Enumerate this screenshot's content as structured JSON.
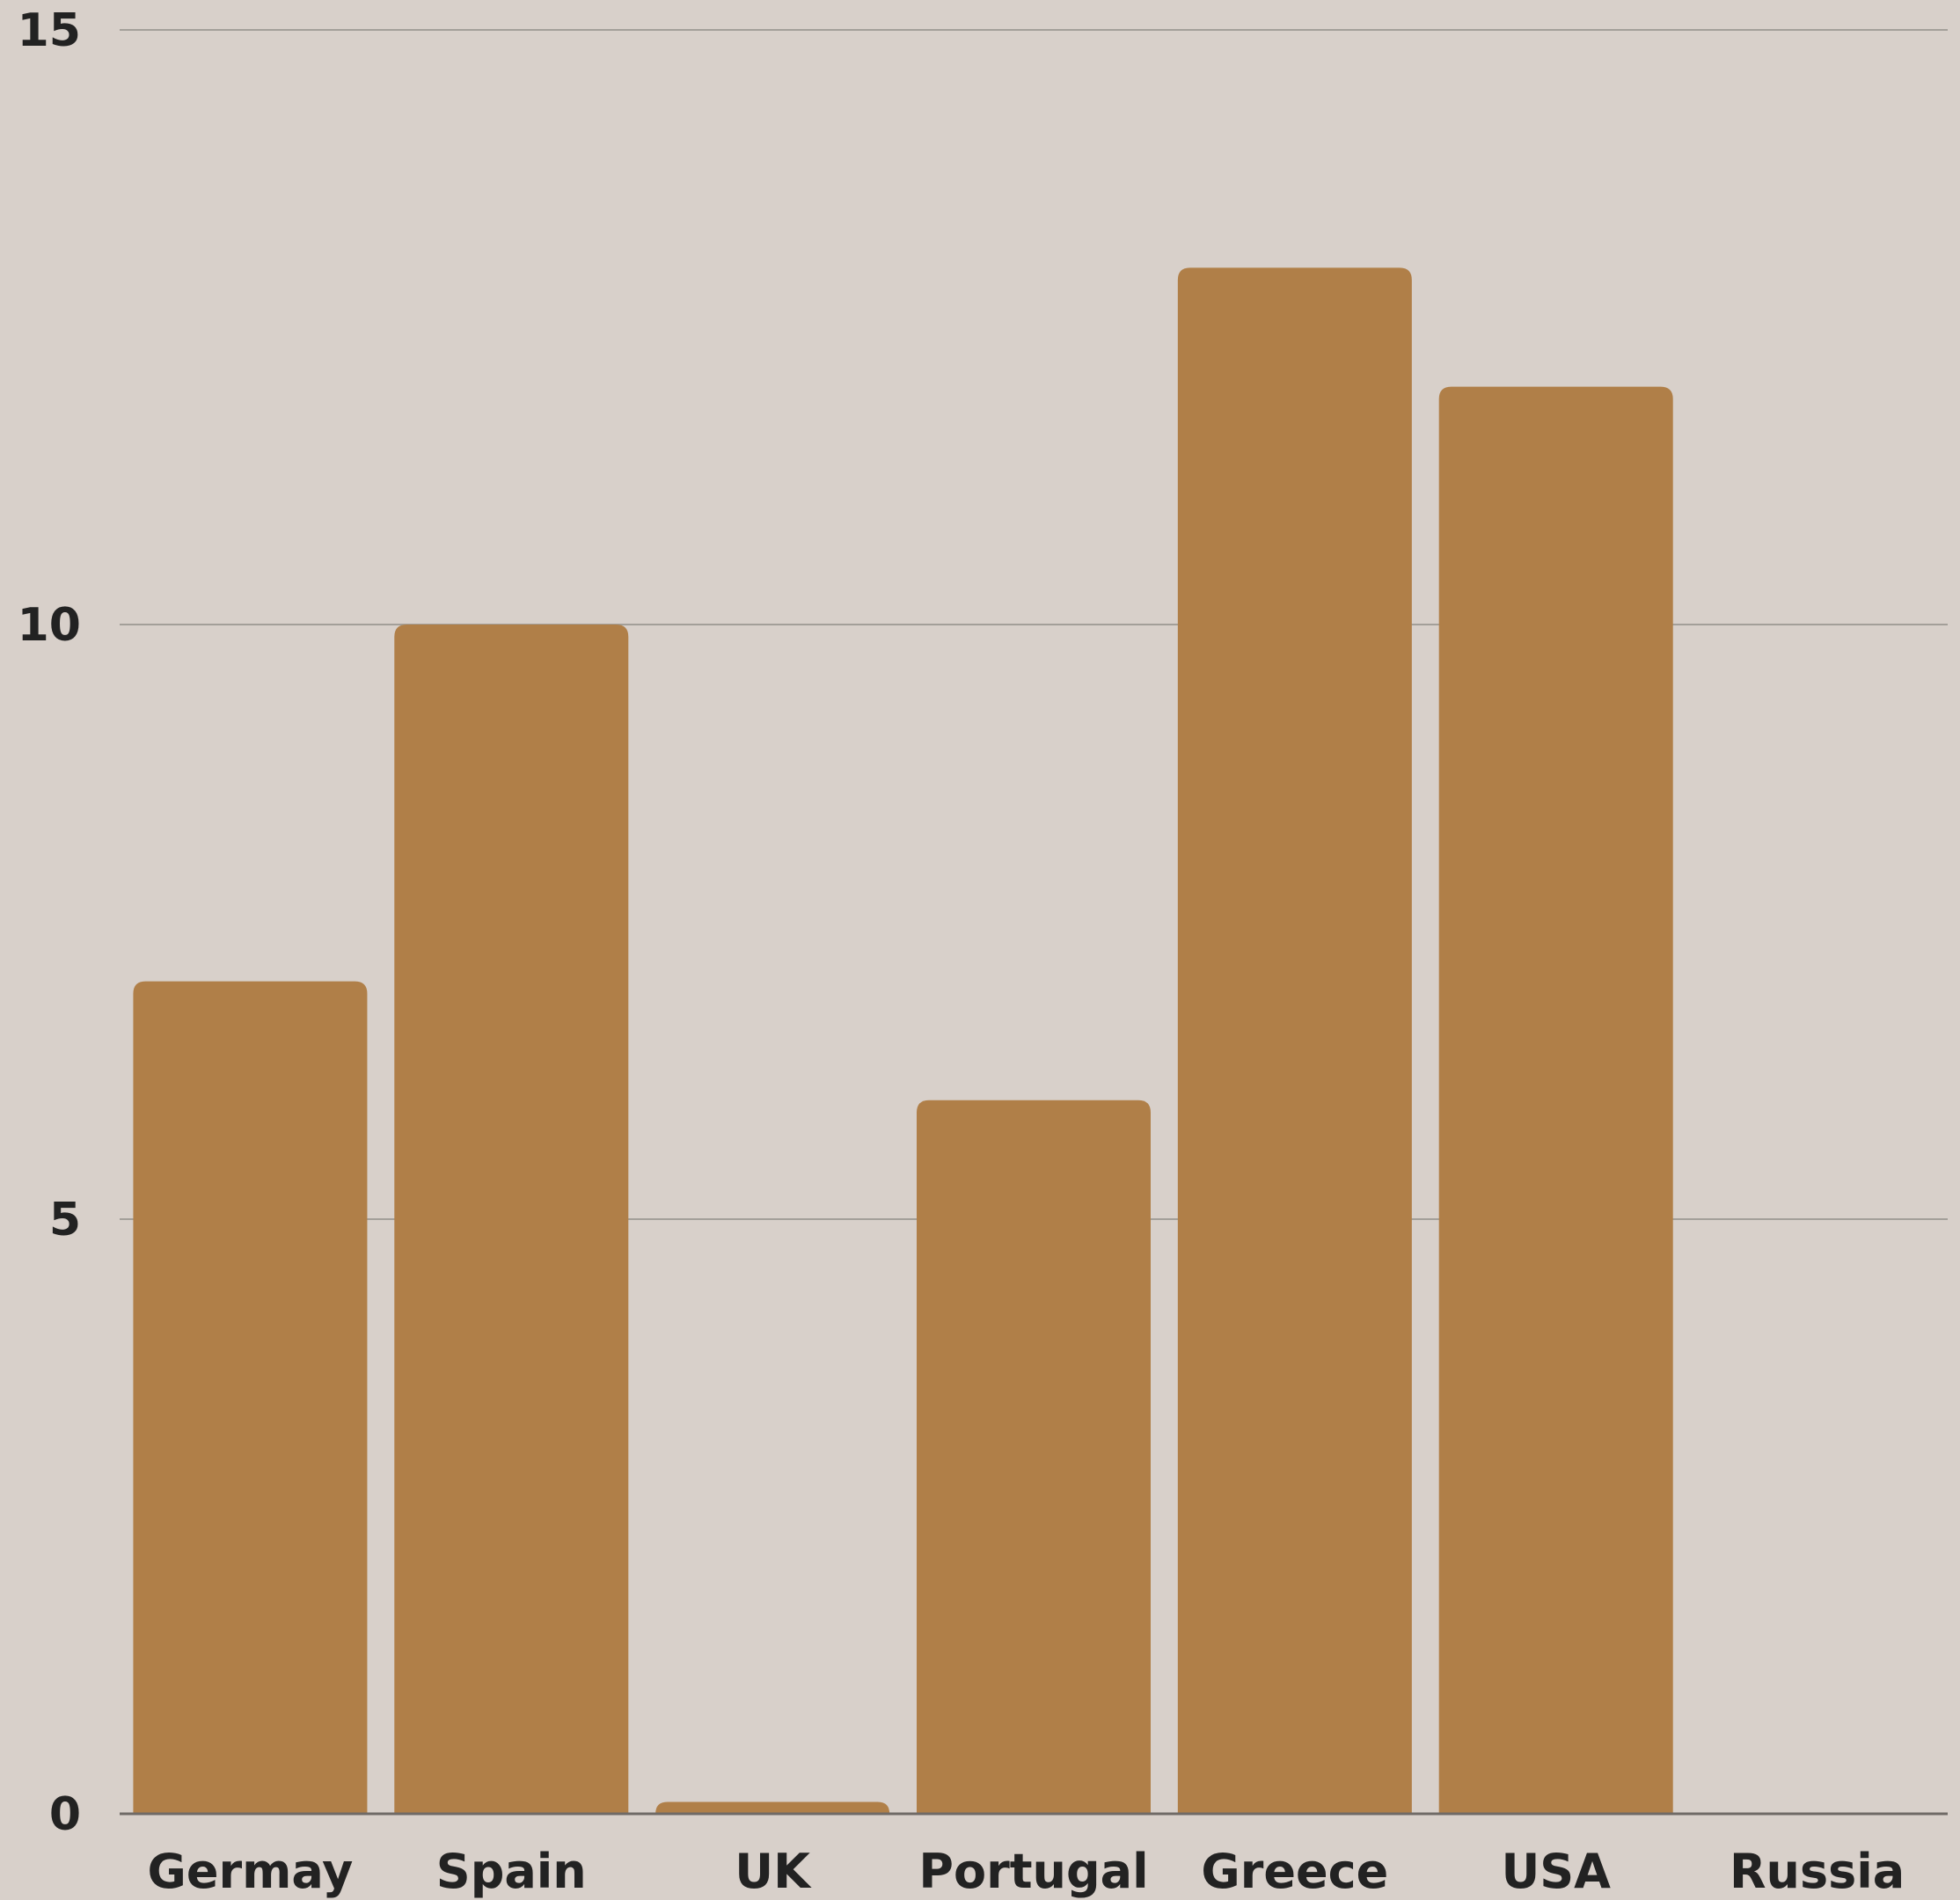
{
  "chart_data": {
    "type": "bar",
    "title": "",
    "xlabel": "",
    "ylabel": "",
    "categories": [
      "Germay",
      "Spain",
      "UK",
      "Portugal",
      "Greece",
      "USA",
      "Russia"
    ],
    "values": [
      7,
      10,
      0.1,
      6,
      13,
      12,
      0
    ],
    "ylim": [
      0,
      15
    ],
    "yticks": [
      0,
      5,
      10,
      15
    ],
    "grid": true,
    "legend": "none",
    "colors": {
      "background": "#d8d0ca",
      "bar": "#b07f48",
      "grid": "#a39f99",
      "axis": "#6f6a66",
      "text": "#222222"
    }
  }
}
